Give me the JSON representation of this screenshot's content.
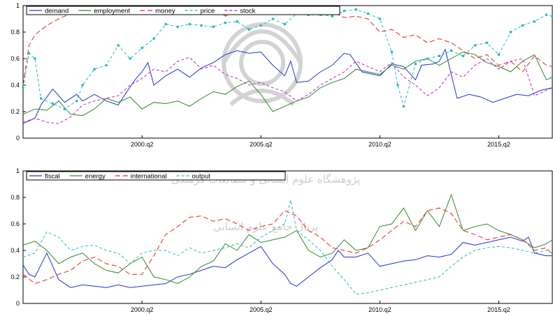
{
  "watermark": {
    "line1": "پژوهشگاه علوم انسانی و مطالعات فرهنگی",
    "line2": "پرتال جامع علوم انسانی"
  },
  "chart_data": [
    {
      "type": "line",
      "title": "",
      "xlabel": "",
      "ylabel": "",
      "x_ticks": [
        "2000.q2",
        "2005.q2",
        "2010.q2",
        "2015.q2"
      ],
      "x_tick_positions": [
        2000.25,
        2005.25,
        2010.25,
        2015.25
      ],
      "xlim": [
        1995.25,
        2017.5
      ],
      "ylim": [
        0,
        1
      ],
      "y_ticks": [
        0,
        0.2,
        0.4,
        0.6,
        0.8,
        1
      ],
      "grid": false,
      "legend": "top",
      "series": [
        {
          "name": "demand",
          "color": "#2233cc",
          "dash": "",
          "x": [
            1995.25,
            1995.75,
            1996,
            1996.5,
            1997,
            1997.5,
            1997.75,
            1998.25,
            1998.75,
            1999.25,
            1999.5,
            2000,
            2000.25,
            2000.5,
            2000.75,
            2001.25,
            2001.75,
            2002.25,
            2002.75,
            2003.25,
            2003.75,
            2004.25,
            2004.75,
            2005.25,
            2005.75,
            2006.25,
            2006.5,
            2006.75,
            2007.25,
            2007.75,
            2008.25,
            2008.75,
            2009,
            2009.5,
            2010,
            2010.25,
            2010.75,
            2011.25,
            2011.75,
            2012,
            2012.5,
            2012.75,
            2013,
            2013.25,
            2013.5,
            2014,
            2014.5,
            2015,
            2015.5,
            2016,
            2016.5,
            2017,
            2017.5
          ],
          "y": [
            0.11,
            0.15,
            0.25,
            0.37,
            0.27,
            0.33,
            0.28,
            0.33,
            0.28,
            0.25,
            0.32,
            0.45,
            0.5,
            0.57,
            0.4,
            0.47,
            0.52,
            0.46,
            0.53,
            0.57,
            0.63,
            0.66,
            0.64,
            0.65,
            0.55,
            0.47,
            0.58,
            0.42,
            0.43,
            0.5,
            0.55,
            0.64,
            0.63,
            0.5,
            0.48,
            0.47,
            0.56,
            0.54,
            0.44,
            0.55,
            0.56,
            0.58,
            0.67,
            0.48,
            0.3,
            0.33,
            0.31,
            0.27,
            0.3,
            0.33,
            0.32,
            0.36,
            0.38
          ]
        },
        {
          "name": "employment",
          "color": "#2a8a2a",
          "dash": "",
          "x": [
            1995.25,
            1995.75,
            1996.25,
            1996.75,
            1997.25,
            1997.75,
            1998.25,
            1998.75,
            1999.25,
            1999.75,
            2000.25,
            2000.75,
            2001.25,
            2001.75,
            2002.25,
            2002.75,
            2003.25,
            2003.75,
            2004.25,
            2004.75,
            2005.25,
            2005.75,
            2006.25,
            2006.75,
            2007.25,
            2007.75,
            2008.25,
            2008.75,
            2009.25,
            2009.75,
            2010.25,
            2010.75,
            2011.25,
            2011.75,
            2012.25,
            2012.75,
            2013.25,
            2013.75,
            2014.25,
            2014.75,
            2015.25,
            2015.75,
            2016.25,
            2016.75,
            2017.25,
            2017.5
          ],
          "y": [
            0.18,
            0.22,
            0.21,
            0.28,
            0.18,
            0.17,
            0.22,
            0.3,
            0.27,
            0.31,
            0.22,
            0.27,
            0.26,
            0.28,
            0.24,
            0.3,
            0.35,
            0.33,
            0.39,
            0.43,
            0.33,
            0.2,
            0.24,
            0.28,
            0.31,
            0.38,
            0.42,
            0.45,
            0.52,
            0.5,
            0.48,
            0.55,
            0.52,
            0.58,
            0.6,
            0.55,
            0.6,
            0.65,
            0.63,
            0.57,
            0.54,
            0.5,
            0.58,
            0.63,
            0.44,
            0.46
          ]
        },
        {
          "name": "money",
          "color": "#ee2222",
          "dash": "7,4",
          "x": [
            1995.25,
            1995.5,
            1995.75,
            1996.25,
            1996.75,
            1997.25,
            1997.75,
            1998.25,
            1998.75,
            1999.25,
            1999.75,
            2000.25,
            2000.75,
            2001.25,
            2001.75,
            2002.25,
            2002.75,
            2003.25,
            2003.75,
            2004.25,
            2004.75,
            2005.25,
            2005.75,
            2006.25,
            2006.75,
            2007.25,
            2007.75,
            2008.25,
            2008.75,
            2009.25,
            2009.75,
            2010.25,
            2010.75,
            2011.25,
            2011.75,
            2012.25,
            2012.75,
            2013.25,
            2013.75,
            2014.25,
            2014.75,
            2015.25,
            2015.75,
            2016.25,
            2016.75,
            2017.25,
            2017.5
          ],
          "y": [
            0.4,
            0.7,
            0.78,
            0.85,
            0.9,
            0.94,
            0.96,
            0.94,
            0.95,
            0.96,
            0.97,
            0.98,
            0.95,
            0.99,
            0.97,
            0.96,
            0.95,
            0.99,
            0.92,
            0.95,
            0.96,
            0.94,
            0.97,
            0.95,
            0.96,
            0.93,
            0.94,
            0.95,
            0.91,
            0.92,
            0.9,
            0.8,
            0.82,
            0.76,
            0.78,
            0.72,
            0.75,
            0.72,
            0.66,
            0.6,
            0.63,
            0.55,
            0.58,
            0.5,
            0.62,
            0.55,
            0.54
          ]
        },
        {
          "name": "price",
          "color": "#22bbbb",
          "dash": "4,3",
          "x": [
            1995.25,
            1995.5,
            1995.75,
            1996,
            1996.5,
            1997,
            1997.5,
            1997.75,
            1998.25,
            1998.75,
            1999.25,
            1999.75,
            2000.25,
            2000.75,
            2001.25,
            2001.75,
            2002.25,
            2002.75,
            2003.25,
            2003.75,
            2004.25,
            2004.75,
            2005.25,
            2005.75,
            2006.25,
            2006.75,
            2007.25,
            2007.75,
            2008.25,
            2008.75,
            2009.25,
            2009.75,
            2010.25,
            2010.75,
            2011,
            2011.25,
            2011.75,
            2012.25,
            2012.75,
            2013.25,
            2013.75,
            2014.25,
            2014.75,
            2015.25,
            2015.75,
            2016.25,
            2016.75,
            2017.25,
            2017.5
          ],
          "y": [
            0.38,
            0.64,
            0.6,
            0.3,
            0.26,
            0.22,
            0.28,
            0.4,
            0.52,
            0.55,
            0.7,
            0.6,
            0.68,
            0.75,
            0.86,
            0.84,
            0.86,
            0.85,
            0.84,
            0.87,
            0.88,
            0.82,
            0.85,
            0.9,
            0.86,
            0.94,
            0.93,
            0.93,
            0.92,
            0.96,
            0.97,
            0.94,
            0.9,
            0.65,
            0.4,
            0.24,
            0.56,
            0.6,
            0.62,
            0.66,
            0.62,
            0.7,
            0.72,
            0.63,
            0.8,
            0.85,
            0.88,
            0.93,
            0.92
          ]
        },
        {
          "name": "stock",
          "color": "#bb22cc",
          "dash": "4,3",
          "x": [
            1995.25,
            1995.75,
            1996.25,
            1996.75,
            1997.25,
            1997.75,
            1998.25,
            1998.75,
            1999.25,
            1999.75,
            2000.25,
            2000.75,
            2001.25,
            2001.75,
            2002.25,
            2002.75,
            2003.25,
            2003.75,
            2004.25,
            2004.75,
            2005.25,
            2005.75,
            2006.25,
            2006.75,
            2007.25,
            2007.75,
            2008.25,
            2008.75,
            2009.25,
            2009.75,
            2010.25,
            2010.75,
            2011.25,
            2011.75,
            2012.25,
            2012.75,
            2013.25,
            2013.75,
            2014.25,
            2014.75,
            2015.25,
            2015.75,
            2016.25,
            2016.75,
            2017.25,
            2017.5
          ],
          "y": [
            0.12,
            0.15,
            0.12,
            0.11,
            0.16,
            0.25,
            0.28,
            0.3,
            0.32,
            0.4,
            0.45,
            0.52,
            0.5,
            0.58,
            0.61,
            0.52,
            0.55,
            0.48,
            0.45,
            0.4,
            0.42,
            0.38,
            0.35,
            0.28,
            0.33,
            0.4,
            0.45,
            0.5,
            0.58,
            0.54,
            0.5,
            0.57,
            0.46,
            0.4,
            0.32,
            0.38,
            0.5,
            0.46,
            0.55,
            0.6,
            0.52,
            0.58,
            0.6,
            0.32,
            0.36,
            0.38
          ]
        }
      ]
    },
    {
      "type": "line",
      "title": "",
      "xlabel": "",
      "ylabel": "",
      "x_ticks": [
        "2000.q2",
        "2005.q2",
        "2010.q2",
        "2015.q2"
      ],
      "x_tick_positions": [
        2000.25,
        2005.25,
        2010.25,
        2015.25
      ],
      "xlim": [
        1995.25,
        2017.5
      ],
      "ylim": [
        0,
        1
      ],
      "y_ticks": [
        0,
        0.2,
        0.4,
        0.6,
        0.8,
        1
      ],
      "grid": false,
      "legend": "top",
      "series": [
        {
          "name": "fiscal",
          "color": "#2233cc",
          "dash": "",
          "x": [
            1995.25,
            1995.5,
            1995.75,
            1996.25,
            1996.75,
            1997.25,
            1997.75,
            1998.25,
            1998.75,
            1999.25,
            1999.75,
            2000.25,
            2000.75,
            2001.25,
            2001.75,
            2002.25,
            2002.75,
            2003.25,
            2003.75,
            2004.25,
            2004.75,
            2005.25,
            2005.75,
            2006.25,
            2006.5,
            2006.75,
            2007.25,
            2007.75,
            2008.25,
            2008.5,
            2008.75,
            2009.25,
            2009.75,
            2010.25,
            2010.75,
            2011.25,
            2011.75,
            2012.25,
            2012.75,
            2013.25,
            2013.75,
            2014.25,
            2014.75,
            2015.25,
            2015.75,
            2016.25,
            2016.5,
            2016.75,
            2017.25,
            2017.5
          ],
          "y": [
            0.29,
            0.22,
            0.2,
            0.38,
            0.18,
            0.12,
            0.14,
            0.13,
            0.12,
            0.14,
            0.12,
            0.13,
            0.14,
            0.15,
            0.2,
            0.22,
            0.25,
            0.28,
            0.27,
            0.33,
            0.38,
            0.43,
            0.3,
            0.22,
            0.15,
            0.13,
            0.2,
            0.27,
            0.33,
            0.4,
            0.35,
            0.35,
            0.38,
            0.28,
            0.3,
            0.32,
            0.33,
            0.36,
            0.35,
            0.37,
            0.46,
            0.44,
            0.46,
            0.48,
            0.5,
            0.47,
            0.5,
            0.38,
            0.36,
            0.36
          ]
        },
        {
          "name": "energy",
          "color": "#2a8a2a",
          "dash": "",
          "x": [
            1995.25,
            1995.75,
            1996.25,
            1996.75,
            1997.25,
            1997.75,
            1998.25,
            1998.75,
            1999.25,
            1999.75,
            2000.25,
            2000.75,
            2001.25,
            2001.75,
            2002.25,
            2002.75,
            2003.25,
            2003.75,
            2004.25,
            2004.75,
            2005.25,
            2005.75,
            2006.25,
            2006.75,
            2007.25,
            2007.75,
            2008.25,
            2008.75,
            2009.25,
            2009.75,
            2010.25,
            2010.75,
            2011.25,
            2011.75,
            2012.25,
            2012.75,
            2013.25,
            2013.75,
            2014.25,
            2014.75,
            2015.25,
            2015.75,
            2016.25,
            2016.75,
            2017.25,
            2017.5
          ],
          "y": [
            0.44,
            0.47,
            0.4,
            0.3,
            0.35,
            0.38,
            0.3,
            0.25,
            0.23,
            0.3,
            0.35,
            0.2,
            0.18,
            0.15,
            0.2,
            0.28,
            0.32,
            0.45,
            0.4,
            0.52,
            0.46,
            0.48,
            0.5,
            0.55,
            0.4,
            0.35,
            0.38,
            0.48,
            0.4,
            0.42,
            0.58,
            0.6,
            0.72,
            0.55,
            0.7,
            0.58,
            0.82,
            0.55,
            0.58,
            0.6,
            0.55,
            0.52,
            0.48,
            0.42,
            0.45,
            0.48
          ]
        },
        {
          "name": "international",
          "color": "#ee2222",
          "dash": "7,4",
          "x": [
            1995.25,
            1995.75,
            1996.25,
            1996.75,
            1997.25,
            1997.75,
            1998.25,
            1998.75,
            1999.25,
            1999.75,
            2000.25,
            2000.75,
            2001.25,
            2001.75,
            2002.25,
            2002.75,
            2003.25,
            2003.75,
            2004.25,
            2004.75,
            2005.25,
            2005.75,
            2006.25,
            2006.75,
            2007.25,
            2007.75,
            2008.25,
            2008.75,
            2009.25,
            2009.75,
            2010.25,
            2010.75,
            2011.25,
            2011.75,
            2012.25,
            2012.75,
            2013.25,
            2013.75,
            2014.25,
            2014.75,
            2015.25,
            2015.75,
            2016.25,
            2016.75,
            2017.25,
            2017.5
          ],
          "y": [
            0.22,
            0.15,
            0.18,
            0.22,
            0.25,
            0.32,
            0.35,
            0.3,
            0.28,
            0.22,
            0.22,
            0.36,
            0.52,
            0.58,
            0.65,
            0.66,
            0.62,
            0.64,
            0.6,
            0.55,
            0.58,
            0.6,
            0.7,
            0.66,
            0.55,
            0.5,
            0.42,
            0.4,
            0.38,
            0.42,
            0.48,
            0.55,
            0.62,
            0.58,
            0.7,
            0.72,
            0.68,
            0.55,
            0.52,
            0.48,
            0.5,
            0.52,
            0.48,
            0.4,
            0.42,
            0.37
          ]
        },
        {
          "name": "output",
          "color": "#22bbbb",
          "dash": "4,3",
          "x": [
            1995.25,
            1995.75,
            1996.25,
            1996.75,
            1997.25,
            1997.75,
            1998.25,
            1998.75,
            1999.25,
            1999.75,
            2000.25,
            2000.75,
            2001.25,
            2001.75,
            2002.25,
            2002.75,
            2003.25,
            2003.75,
            2004.25,
            2004.75,
            2005.25,
            2005.75,
            2006.25,
            2006.5,
            2006.75,
            2007.25,
            2007.75,
            2008.25,
            2008.75,
            2009.25,
            2009.75,
            2010.25,
            2010.75,
            2011.25,
            2011.75,
            2012.25,
            2012.75,
            2013.25,
            2013.75,
            2014.25,
            2014.75,
            2015.25,
            2015.75,
            2016.25,
            2016.75,
            2017.25,
            2017.5
          ],
          "y": [
            0.35,
            0.38,
            0.54,
            0.5,
            0.4,
            0.43,
            0.44,
            0.4,
            0.38,
            0.3,
            0.38,
            0.4,
            0.4,
            0.36,
            0.42,
            0.38,
            0.4,
            0.42,
            0.45,
            0.42,
            0.5,
            0.55,
            0.6,
            0.78,
            0.55,
            0.48,
            0.4,
            0.28,
            0.18,
            0.07,
            0.08,
            0.1,
            0.12,
            0.14,
            0.16,
            0.18,
            0.2,
            0.28,
            0.35,
            0.4,
            0.42,
            0.43,
            0.42,
            0.4,
            0.38,
            0.4,
            0.38
          ]
        }
      ]
    }
  ]
}
